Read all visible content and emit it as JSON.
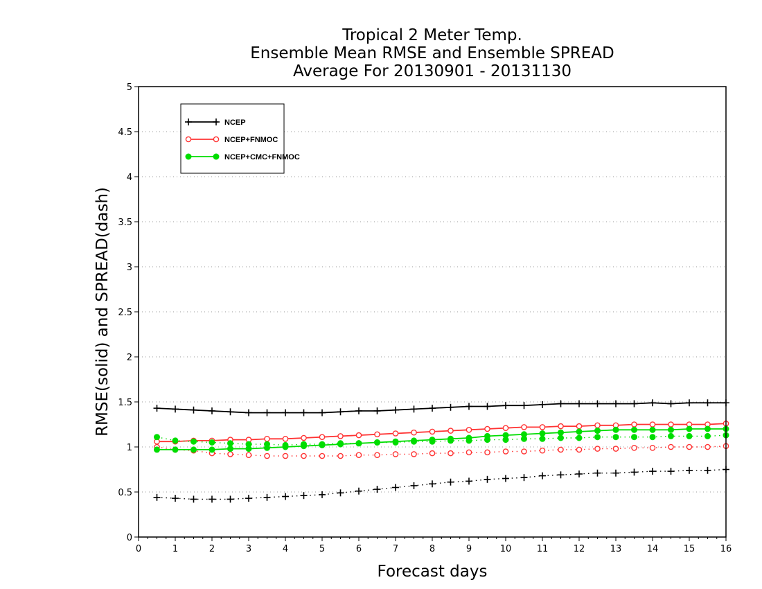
{
  "chart_data": {
    "type": "line",
    "title_lines": [
      "Tropical 2 Meter Temp.",
      "Ensemble Mean RMSE and Ensemble SPREAD",
      "Average For 20130901 - 20131130"
    ],
    "xlabel": "Forecast days",
    "ylabel": "RMSE(solid) and SPREAD(dash)",
    "xlim": [
      0,
      16
    ],
    "ylim": [
      0,
      5
    ],
    "x_ticks": [
      "0",
      "1",
      "2",
      "3",
      "4",
      "5",
      "6",
      "7",
      "8",
      "9",
      "10",
      "11",
      "12",
      "13",
      "14",
      "15",
      "16"
    ],
    "y_ticks": [
      "0",
      "0.5",
      "1",
      "1.5",
      "2",
      "2.5",
      "3",
      "3.5",
      "4",
      "4.5",
      "5"
    ],
    "grid": "horizontal-dotted",
    "legend_position": "top-left",
    "x": [
      0.5,
      1,
      1.5,
      2,
      2.5,
      3,
      3.5,
      4,
      4.5,
      5,
      5.5,
      6,
      6.5,
      7,
      7.5,
      8,
      8.5,
      9,
      9.5,
      10,
      10.5,
      11,
      11.5,
      12,
      12.5,
      13,
      13.5,
      14,
      14.5,
      15,
      15.5,
      16
    ],
    "series": [
      {
        "name": "NCEP",
        "color": "#000000",
        "marker": "plus",
        "rmse": [
          1.43,
          1.42,
          1.41,
          1.4,
          1.39,
          1.38,
          1.38,
          1.38,
          1.38,
          1.38,
          1.39,
          1.4,
          1.4,
          1.41,
          1.42,
          1.43,
          1.44,
          1.45,
          1.45,
          1.46,
          1.46,
          1.47,
          1.48,
          1.48,
          1.48,
          1.48,
          1.48,
          1.49,
          1.48,
          1.49,
          1.49,
          1.49
        ],
        "spread": [
          0.44,
          0.43,
          0.42,
          0.42,
          0.42,
          0.43,
          0.44,
          0.45,
          0.46,
          0.47,
          0.49,
          0.51,
          0.53,
          0.55,
          0.57,
          0.59,
          0.61,
          0.62,
          0.64,
          0.65,
          0.66,
          0.68,
          0.69,
          0.7,
          0.71,
          0.71,
          0.72,
          0.73,
          0.73,
          0.74,
          0.74,
          0.75
        ]
      },
      {
        "name": "NCEP+FNMOC",
        "color": "#ff3333",
        "marker": "circle-open",
        "rmse": [
          1.06,
          1.06,
          1.07,
          1.07,
          1.08,
          1.08,
          1.09,
          1.09,
          1.1,
          1.11,
          1.12,
          1.13,
          1.14,
          1.15,
          1.16,
          1.17,
          1.18,
          1.19,
          1.2,
          1.21,
          1.22,
          1.22,
          1.23,
          1.23,
          1.24,
          1.24,
          1.25,
          1.25,
          1.25,
          1.25,
          1.25,
          1.26
        ],
        "spread": [
          1.0,
          0.97,
          0.96,
          0.93,
          0.92,
          0.91,
          0.9,
          0.9,
          0.9,
          0.9,
          0.9,
          0.91,
          0.91,
          0.92,
          0.92,
          0.93,
          0.93,
          0.94,
          0.94,
          0.95,
          0.95,
          0.96,
          0.97,
          0.97,
          0.98,
          0.98,
          0.99,
          0.99,
          1.0,
          1.0,
          1.0,
          1.01
        ]
      },
      {
        "name": "NCEP+CMC+FNMOC",
        "color": "#00dd00",
        "marker": "circle-filled",
        "rmse": [
          0.97,
          0.97,
          0.97,
          0.97,
          0.98,
          0.98,
          0.99,
          1.0,
          1.01,
          1.02,
          1.03,
          1.04,
          1.05,
          1.06,
          1.07,
          1.08,
          1.09,
          1.1,
          1.12,
          1.13,
          1.14,
          1.15,
          1.16,
          1.17,
          1.18,
          1.19,
          1.19,
          1.19,
          1.19,
          1.2,
          1.2,
          1.2
        ],
        "spread": [
          1.11,
          1.07,
          1.06,
          1.05,
          1.04,
          1.03,
          1.03,
          1.02,
          1.03,
          1.03,
          1.04,
          1.04,
          1.05,
          1.05,
          1.06,
          1.06,
          1.07,
          1.07,
          1.08,
          1.08,
          1.09,
          1.09,
          1.1,
          1.1,
          1.11,
          1.11,
          1.11,
          1.11,
          1.12,
          1.12,
          1.12,
          1.13
        ]
      }
    ]
  }
}
